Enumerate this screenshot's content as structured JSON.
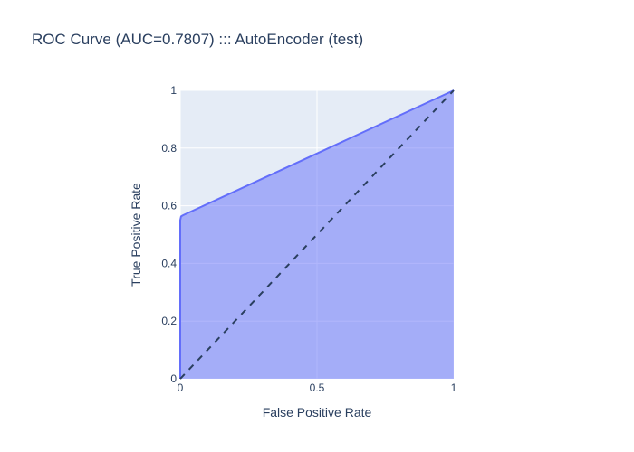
{
  "chart_data": {
    "type": "area",
    "title": "ROC Curve (AUC=0.7807) ::: AutoEncoder (test)",
    "xlabel": "False Positive Rate",
    "ylabel": "True Positive Rate",
    "xlim": [
      0,
      1
    ],
    "ylim": [
      0,
      1
    ],
    "x_ticks": [
      "0",
      "0.5",
      "1"
    ],
    "y_ticks": [
      "0",
      "0.2",
      "0.4",
      "0.6",
      "0.8",
      "1"
    ],
    "x_tick_values": [
      0,
      0.5,
      1
    ],
    "y_tick_values": [
      0,
      0.2,
      0.4,
      0.6,
      0.8,
      1
    ],
    "grid": true,
    "series": [
      {
        "x": [
          0,
          0,
          0.003,
          0.01,
          1
        ],
        "y": [
          0,
          0.55,
          0.563,
          0.567,
          1
        ],
        "color": "#636efa",
        "fill_color": "rgba(99,110,250,0.5)"
      },
      {
        "x": [
          0,
          1
        ],
        "y": [
          0,
          1
        ],
        "color": "#2a3f5f",
        "dash": "dash"
      }
    ],
    "colors": {
      "plot_background": "#e5ecf6",
      "grid": "#ffffff",
      "text": "#2a3f5f"
    }
  }
}
